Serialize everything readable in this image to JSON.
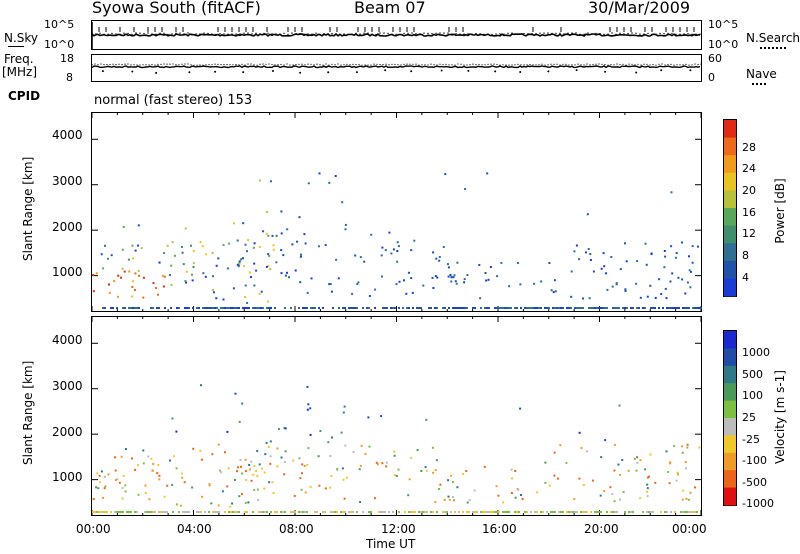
{
  "header": {
    "title": "Syowa South (fitACF)",
    "beam": "Beam 07",
    "date": "30/Mar/2009"
  },
  "side_labels": {
    "nsky": "N.Sky",
    "freq": "Freq.",
    "freq_unit": "[MHz]",
    "cpid": "CPID",
    "nsearch": "N.Search",
    "nave": "Nave"
  },
  "top_strip": {
    "left_ticks": [
      "10^5",
      "10^0"
    ],
    "right_ticks": [
      "10^5",
      "10^0"
    ]
  },
  "freq_strip": {
    "left_ticks": [
      "18",
      "8"
    ],
    "right_ticks": [
      "60",
      "0"
    ]
  },
  "cpid_text": "normal (fast stereo) 153",
  "colors": {
    "power_scale": [
      "#1a3cd6",
      "#1f52a8",
      "#2e6f93",
      "#3d8f6e",
      "#58a85a",
      "#b8c238",
      "#e8c420",
      "#f29a1a",
      "#ee6a1a",
      "#e02a14"
    ],
    "velocity_scale": [
      "#1a2ad0",
      "#1f4ea8",
      "#2e7a86",
      "#4a9a5a",
      "#7cc040",
      "#bcbcbc",
      "#f0c828",
      "#f09a28",
      "#ee6418",
      "#e01010"
    ]
  },
  "chart_data": [
    {
      "type": "heatmap",
      "title": "",
      "xlabel": "Time UT",
      "ylabel": "Slant Range [km]",
      "x_ticks": [
        "00:00",
        "04:00",
        "08:00",
        "12:00",
        "16:00",
        "20:00",
        "00:00"
      ],
      "y_ticks": [
        1000,
        2000,
        3000,
        4000
      ],
      "ylim": [
        200,
        4600
      ],
      "colorbar": {
        "label": "Power [dB]",
        "ticks": [
          4,
          8,
          12,
          16,
          20,
          24,
          28
        ],
        "range": [
          2,
          30
        ]
      }
    },
    {
      "type": "heatmap",
      "title": "",
      "xlabel": "Time UT",
      "ylabel": "Slant Range [km]",
      "x_ticks": [
        "00:00",
        "04:00",
        "08:00",
        "12:00",
        "16:00",
        "20:00",
        "00:00"
      ],
      "y_ticks": [
        1000,
        2000,
        3000,
        4000
      ],
      "ylim": [
        200,
        4600
      ],
      "colorbar": {
        "label": "Velocity [m s-1]",
        "ticks": [
          "1000",
          "500",
          "100",
          "25",
          "-25",
          "-100",
          "-500",
          "-1000"
        ]
      }
    }
  ]
}
